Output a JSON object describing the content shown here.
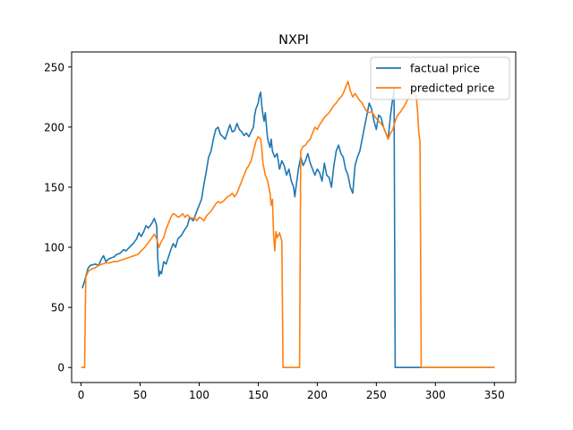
{
  "chart_data": {
    "type": "line",
    "title": "NXPI",
    "xlabel": "",
    "ylabel": "",
    "xlim": [
      -8,
      368
    ],
    "ylim": [
      -12.5,
      262.5
    ],
    "xticks": [
      0,
      50,
      100,
      150,
      200,
      250,
      300,
      350
    ],
    "yticks": [
      0,
      50,
      100,
      150,
      200,
      250
    ],
    "grid": false,
    "legend_position": "top-right",
    "series": [
      {
        "name": "factual price",
        "color": "#1f77b4",
        "points": [
          [
            1,
            66
          ],
          [
            3,
            72
          ],
          [
            6,
            83
          ],
          [
            8,
            85
          ],
          [
            12,
            86
          ],
          [
            15,
            85
          ],
          [
            17,
            90
          ],
          [
            19,
            93
          ],
          [
            21,
            88
          ],
          [
            23,
            90
          ],
          [
            25,
            91
          ],
          [
            28,
            92
          ],
          [
            30,
            94
          ],
          [
            33,
            95
          ],
          [
            36,
            98
          ],
          [
            38,
            97
          ],
          [
            41,
            100
          ],
          [
            44,
            103
          ],
          [
            47,
            107
          ],
          [
            49,
            112
          ],
          [
            51,
            109
          ],
          [
            53,
            113
          ],
          [
            55,
            118
          ],
          [
            57,
            116
          ],
          [
            60,
            120
          ],
          [
            62,
            124
          ],
          [
            64,
            118
          ],
          [
            65,
            90
          ],
          [
            66,
            76
          ],
          [
            67,
            80
          ],
          [
            68,
            78
          ],
          [
            70,
            88
          ],
          [
            72,
            86
          ],
          [
            74,
            92
          ],
          [
            76,
            98
          ],
          [
            78,
            103
          ],
          [
            80,
            100
          ],
          [
            82,
            107
          ],
          [
            85,
            110
          ],
          [
            88,
            115
          ],
          [
            90,
            118
          ],
          [
            92,
            125
          ],
          [
            95,
            122
          ],
          [
            98,
            130
          ],
          [
            100,
            135
          ],
          [
            102,
            140
          ],
          [
            104,
            152
          ],
          [
            106,
            163
          ],
          [
            108,
            175
          ],
          [
            110,
            180
          ],
          [
            112,
            190
          ],
          [
            114,
            198
          ],
          [
            116,
            200
          ],
          [
            118,
            194
          ],
          [
            120,
            192
          ],
          [
            122,
            190
          ],
          [
            124,
            196
          ],
          [
            126,
            202
          ],
          [
            128,
            196
          ],
          [
            130,
            197
          ],
          [
            132,
            203
          ],
          [
            134,
            198
          ],
          [
            136,
            196
          ],
          [
            138,
            193
          ],
          [
            140,
            195
          ],
          [
            142,
            192
          ],
          [
            144,
            196
          ],
          [
            146,
            200
          ],
          [
            147,
            210
          ],
          [
            148,
            215
          ],
          [
            150,
            220
          ],
          [
            151,
            226
          ],
          [
            152,
            229
          ],
          [
            153,
            218
          ],
          [
            154,
            210
          ],
          [
            155,
            205
          ],
          [
            156,
            212
          ],
          [
            157,
            200
          ],
          [
            158,
            190
          ],
          [
            160,
            183
          ],
          [
            161,
            190
          ],
          [
            162,
            180
          ],
          [
            164,
            175
          ],
          [
            166,
            178
          ],
          [
            168,
            165
          ],
          [
            170,
            172
          ],
          [
            172,
            168
          ],
          [
            174,
            160
          ],
          [
            176,
            165
          ],
          [
            178,
            155
          ],
          [
            180,
            150
          ],
          [
            181,
            142
          ],
          [
            182,
            150
          ],
          [
            184,
            165
          ],
          [
            186,
            175
          ],
          [
            188,
            168
          ],
          [
            190,
            172
          ],
          [
            192,
            178
          ],
          [
            194,
            170
          ],
          [
            196,
            165
          ],
          [
            198,
            160
          ],
          [
            200,
            165
          ],
          [
            202,
            162
          ],
          [
            204,
            155
          ],
          [
            206,
            170
          ],
          [
            208,
            160
          ],
          [
            210,
            158
          ],
          [
            212,
            150
          ],
          [
            214,
            168
          ],
          [
            216,
            180
          ],
          [
            218,
            185
          ],
          [
            220,
            178
          ],
          [
            222,
            175
          ],
          [
            224,
            165
          ],
          [
            226,
            160
          ],
          [
            228,
            150
          ],
          [
            230,
            145
          ],
          [
            232,
            168
          ],
          [
            234,
            175
          ],
          [
            236,
            180
          ],
          [
            238,
            190
          ],
          [
            240,
            200
          ],
          [
            242,
            210
          ],
          [
            244,
            220
          ],
          [
            246,
            215
          ],
          [
            248,
            205
          ],
          [
            250,
            198
          ],
          [
            252,
            210
          ],
          [
            254,
            208
          ],
          [
            256,
            200
          ],
          [
            258,
            195
          ],
          [
            260,
            190
          ],
          [
            262,
            210
          ],
          [
            264,
            225
          ],
          [
            265,
            232
          ],
          [
            266,
            0
          ],
          [
            300,
            0
          ],
          [
            350,
            0
          ]
        ]
      },
      {
        "name": "predicted price",
        "color": "#ff7f0e",
        "points": [
          [
            0,
            0
          ],
          [
            3,
            0
          ],
          [
            4,
            75
          ],
          [
            6,
            80
          ],
          [
            9,
            82
          ],
          [
            12,
            83
          ],
          [
            15,
            85
          ],
          [
            18,
            86
          ],
          [
            21,
            87
          ],
          [
            24,
            87
          ],
          [
            27,
            88
          ],
          [
            30,
            88
          ],
          [
            33,
            89
          ],
          [
            36,
            90
          ],
          [
            39,
            91
          ],
          [
            42,
            92
          ],
          [
            45,
            93
          ],
          [
            48,
            94
          ],
          [
            51,
            97
          ],
          [
            54,
            100
          ],
          [
            57,
            104
          ],
          [
            60,
            108
          ],
          [
            62,
            111
          ],
          [
            64,
            107
          ],
          [
            66,
            100
          ],
          [
            68,
            105
          ],
          [
            70,
            108
          ],
          [
            72,
            115
          ],
          [
            74,
            120
          ],
          [
            76,
            125
          ],
          [
            78,
            128
          ],
          [
            80,
            127
          ],
          [
            82,
            125
          ],
          [
            84,
            126
          ],
          [
            86,
            128
          ],
          [
            88,
            125
          ],
          [
            90,
            127
          ],
          [
            92,
            125
          ],
          [
            94,
            124
          ],
          [
            96,
            125
          ],
          [
            98,
            122
          ],
          [
            100,
            125
          ],
          [
            102,
            124
          ],
          [
            104,
            122
          ],
          [
            106,
            126
          ],
          [
            108,
            128
          ],
          [
            110,
            130
          ],
          [
            112,
            133
          ],
          [
            114,
            136
          ],
          [
            116,
            138
          ],
          [
            118,
            137
          ],
          [
            120,
            138
          ],
          [
            122,
            140
          ],
          [
            124,
            142
          ],
          [
            126,
            143
          ],
          [
            128,
            145
          ],
          [
            130,
            142
          ],
          [
            132,
            145
          ],
          [
            134,
            150
          ],
          [
            136,
            155
          ],
          [
            138,
            160
          ],
          [
            140,
            165
          ],
          [
            142,
            168
          ],
          [
            144,
            172
          ],
          [
            146,
            180
          ],
          [
            148,
            188
          ],
          [
            150,
            192
          ],
          [
            152,
            190
          ],
          [
            153,
            182
          ],
          [
            154,
            170
          ],
          [
            156,
            160
          ],
          [
            158,
            155
          ],
          [
            160,
            145
          ],
          [
            161,
            135
          ],
          [
            162,
            140
          ],
          [
            163,
            110
          ],
          [
            164,
            97
          ],
          [
            165,
            113
          ],
          [
            166,
            108
          ],
          [
            168,
            112
          ],
          [
            170,
            105
          ],
          [
            171,
            0
          ],
          [
            185,
            0
          ],
          [
            186,
            180
          ],
          [
            188,
            184
          ],
          [
            190,
            185
          ],
          [
            192,
            188
          ],
          [
            194,
            190
          ],
          [
            196,
            195
          ],
          [
            198,
            200
          ],
          [
            200,
            198
          ],
          [
            202,
            202
          ],
          [
            204,
            205
          ],
          [
            206,
            208
          ],
          [
            208,
            210
          ],
          [
            210,
            212
          ],
          [
            212,
            215
          ],
          [
            214,
            218
          ],
          [
            216,
            220
          ],
          [
            218,
            223
          ],
          [
            220,
            225
          ],
          [
            222,
            228
          ],
          [
            224,
            233
          ],
          [
            226,
            238
          ],
          [
            228,
            230
          ],
          [
            230,
            225
          ],
          [
            232,
            228
          ],
          [
            234,
            225
          ],
          [
            236,
            222
          ],
          [
            238,
            220
          ],
          [
            240,
            216
          ],
          [
            242,
            213
          ],
          [
            244,
            212
          ],
          [
            246,
            213
          ],
          [
            248,
            210
          ],
          [
            250,
            207
          ],
          [
            252,
            205
          ],
          [
            254,
            203
          ],
          [
            256,
            200
          ],
          [
            258,
            195
          ],
          [
            260,
            190
          ],
          [
            262,
            195
          ],
          [
            264,
            198
          ],
          [
            266,
            205
          ],
          [
            268,
            210
          ],
          [
            270,
            212
          ],
          [
            272,
            215
          ],
          [
            274,
            218
          ],
          [
            276,
            222
          ],
          [
            278,
            225
          ],
          [
            280,
            228
          ],
          [
            282,
            230
          ],
          [
            284,
            224
          ],
          [
            285,
            212
          ],
          [
            286,
            195
          ],
          [
            287,
            188
          ],
          [
            288,
            0
          ],
          [
            300,
            0
          ],
          [
            350,
            0
          ]
        ]
      }
    ]
  }
}
